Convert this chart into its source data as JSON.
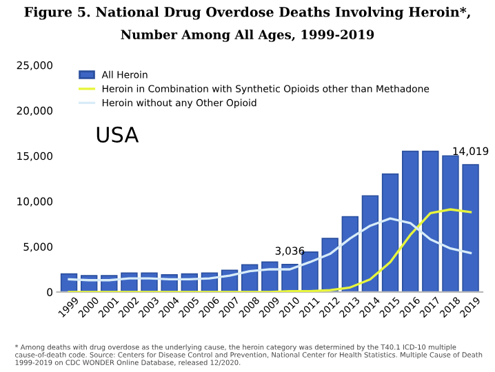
{
  "chart_data": {
    "type": "bar",
    "title": "Figure 5. National Drug Overdose Deaths Involving Heroin*,",
    "subtitle": "Number Among All Ages, 1999-2019",
    "categories": [
      "1999",
      "2000",
      "2001",
      "2002",
      "2003",
      "2004",
      "2005",
      "2006",
      "2007",
      "2008",
      "2009",
      "2010",
      "2011",
      "2012",
      "2013",
      "2014",
      "2015",
      "2016",
      "2017",
      "2018",
      "2019"
    ],
    "series": [
      {
        "name": "All Heroin",
        "color": "#3d66c4",
        "values": [
          2000,
          1800,
          1800,
          2100,
          2100,
          1900,
          2000,
          2100,
          2400,
          3000,
          3300,
          3036,
          4400,
          5900,
          8300,
          10600,
          13000,
          15500,
          15500,
          15000,
          14019
        ],
        "value_labels": [
          null,
          null,
          null,
          null,
          null,
          null,
          null,
          null,
          null,
          null,
          null,
          "3,036",
          null,
          null,
          null,
          null,
          null,
          null,
          null,
          null,
          "14,019"
        ]
      },
      {
        "name": "Heroin in Combination with Synthetic Opioids other than Methadone",
        "type": "line",
        "color": "#e8f53c",
        "values": [
          0,
          0,
          0,
          0,
          0,
          0,
          0,
          0,
          0,
          0,
          0,
          100,
          100,
          200,
          500,
          1400,
          3300,
          6300,
          8700,
          9100,
          8800
        ]
      },
      {
        "name": "Heroin without any Other Opioid",
        "type": "line",
        "color": "#d8ecf8",
        "values": [
          1400,
          1300,
          1300,
          1500,
          1500,
          1400,
          1400,
          1500,
          1800,
          2300,
          2500,
          2500,
          3300,
          4200,
          5900,
          7300,
          8100,
          7600,
          5800,
          4800,
          4300
        ]
      }
    ],
    "ylim": [
      0,
      25000
    ],
    "yticks": [
      {
        "value": 0,
        "label": "0"
      },
      {
        "value": 5000,
        "label": "5,000"
      },
      {
        "value": 10000,
        "label": "10,000"
      },
      {
        "value": 15000,
        "label": "15,000"
      },
      {
        "value": 20000,
        "label": "20,000"
      },
      {
        "value": 25000,
        "label": "25,000"
      }
    ],
    "grid": false,
    "legend": "top left",
    "marker": "none",
    "line_style": "solid",
    "annotations": [
      "USA",
      "* Among deaths with drug overdose as the underlying cause, the heroin category was determined by the T40.1 ICD-10 multiple cause-of-death code. Source: Centers for Disease Control and Prevention, National Center for Health Statistics. Multiple Cause of Death 1999-2019 on CDC WONDER Online Database, released 12/2020."
    ]
  }
}
